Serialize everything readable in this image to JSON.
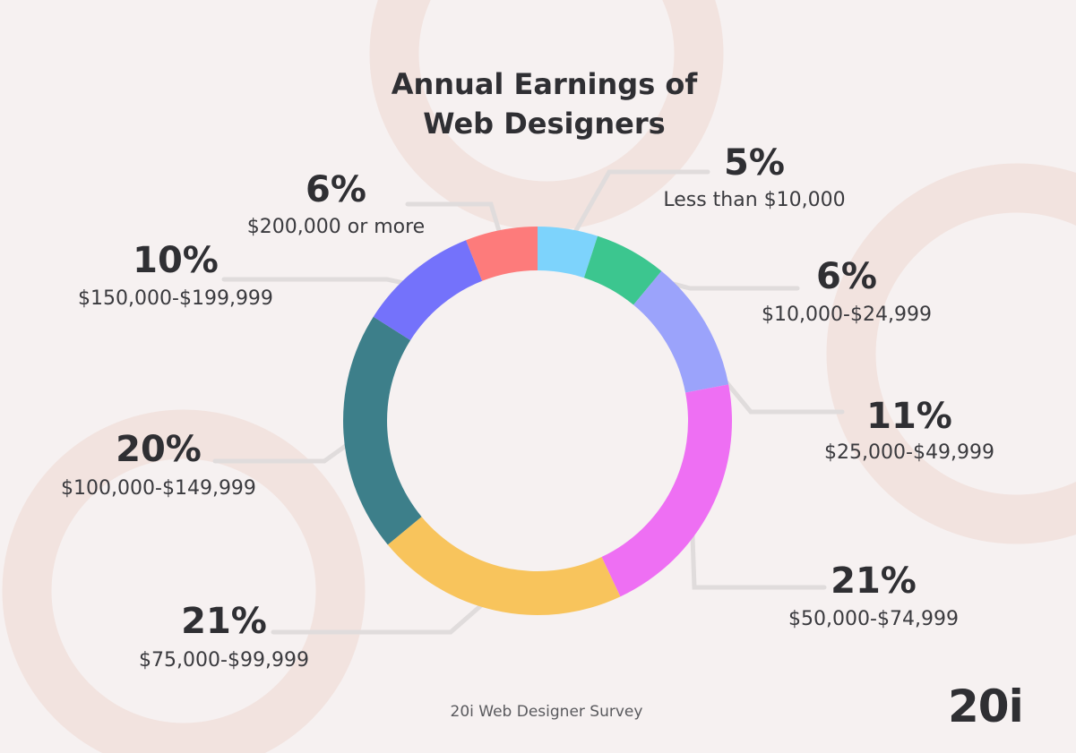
{
  "chart_data": {
    "type": "pie",
    "subtype": "donut",
    "title_line1": "Annual Earnings of",
    "title_line2": "Web Designers",
    "source": "20i Web Designer Survey",
    "slices": [
      {
        "label": "Less than $10,000",
        "value": 5,
        "display": "5%",
        "color": "#7dd3fc"
      },
      {
        "label": "$10,000-$24,999",
        "value": 6,
        "display": "6%",
        "color": "#3cc68f"
      },
      {
        "label": "$25,000-$49,999",
        "value": 11,
        "display": "11%",
        "color": "#9ba3fb"
      },
      {
        "label": "$50,000-$74,999",
        "value": 21,
        "display": "21%",
        "color": "#ee6ff3"
      },
      {
        "label": "$75,000-$99,999",
        "value": 21,
        "display": "21%",
        "color": "#f8c45c"
      },
      {
        "label": "$100,000-$149,999",
        "value": 20,
        "display": "20%",
        "color": "#3d7f8a"
      },
      {
        "label": "$150,000-$199,999",
        "value": 10,
        "display": "10%",
        "color": "#7472fb"
      },
      {
        "label": "$200,000 or more",
        "value": 6,
        "display": "6%",
        "color": "#fd7b7b"
      }
    ]
  },
  "brand": {
    "logo_text": "20i"
  }
}
